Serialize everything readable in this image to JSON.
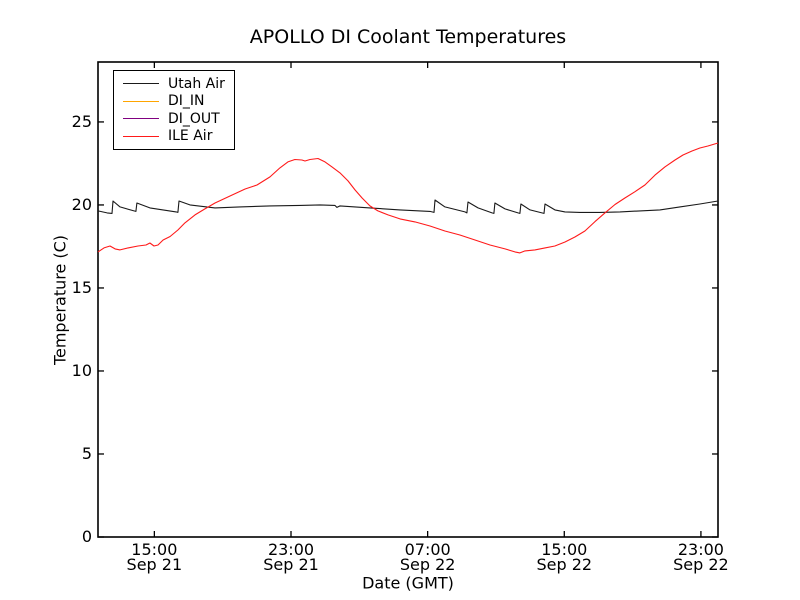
{
  "chart_data": {
    "type": "line",
    "title": "APOLLO DI Coolant Temperatures",
    "xlabel": "Date (GMT)",
    "ylabel": "Temperature (C)",
    "x_unit": "hours since Sep 21 00:00 GMT",
    "xlim": [
      11.7,
      48.0
    ],
    "ylim": [
      0,
      28.61
    ],
    "grid": false,
    "legend_position": "upper left",
    "yticks": [
      {
        "v": 0,
        "label": "0"
      },
      {
        "v": 5,
        "label": "5"
      },
      {
        "v": 10,
        "label": "10"
      },
      {
        "v": 15,
        "label": "15"
      },
      {
        "v": 20,
        "label": "20"
      },
      {
        "v": 25,
        "label": "25"
      }
    ],
    "xticks": [
      {
        "t": 15,
        "time": "15:00",
        "date": "Sep 21"
      },
      {
        "t": 23,
        "time": "23:00",
        "date": "Sep 21"
      },
      {
        "t": 31,
        "time": "07:00",
        "date": "Sep 22"
      },
      {
        "t": 39,
        "time": "15:00",
        "date": "Sep 22"
      },
      {
        "t": 47,
        "time": "23:00",
        "date": "Sep 22"
      }
    ],
    "series": [
      {
        "name": "Utah Air",
        "color": "#1a1a1a",
        "points": [
          [
            11.7,
            19.64
          ],
          [
            12.23,
            19.52
          ],
          [
            12.52,
            19.49
          ],
          [
            12.58,
            20.24
          ],
          [
            12.99,
            19.88
          ],
          [
            13.81,
            19.64
          ],
          [
            13.92,
            19.61
          ],
          [
            13.98,
            20.12
          ],
          [
            14.74,
            19.82
          ],
          [
            16.27,
            19.58
          ],
          [
            16.38,
            19.55
          ],
          [
            16.44,
            20.24
          ],
          [
            17.08,
            20.0
          ],
          [
            18.55,
            19.82
          ],
          [
            20.01,
            19.88
          ],
          [
            21.77,
            19.94
          ],
          [
            23.52,
            19.97
          ],
          [
            24.7,
            20.0
          ],
          [
            25.57,
            19.97
          ],
          [
            25.69,
            19.85
          ],
          [
            25.87,
            19.94
          ],
          [
            27.62,
            19.82
          ],
          [
            29.38,
            19.7
          ],
          [
            31.14,
            19.61
          ],
          [
            31.37,
            19.55
          ],
          [
            31.43,
            20.3
          ],
          [
            32.01,
            19.88
          ],
          [
            33.18,
            19.58
          ],
          [
            33.3,
            19.52
          ],
          [
            33.36,
            20.18
          ],
          [
            33.95,
            19.82
          ],
          [
            34.77,
            19.52
          ],
          [
            34.88,
            19.49
          ],
          [
            34.94,
            20.12
          ],
          [
            35.53,
            19.76
          ],
          [
            36.29,
            19.52
          ],
          [
            36.4,
            19.49
          ],
          [
            36.46,
            20.06
          ],
          [
            36.99,
            19.7
          ],
          [
            37.69,
            19.52
          ],
          [
            37.81,
            19.49
          ],
          [
            37.87,
            20.06
          ],
          [
            38.45,
            19.7
          ],
          [
            39.04,
            19.58
          ],
          [
            39.92,
            19.55
          ],
          [
            41.09,
            19.55
          ],
          [
            42.26,
            19.58
          ],
          [
            43.43,
            19.64
          ],
          [
            44.6,
            19.7
          ],
          [
            45.77,
            19.88
          ],
          [
            46.94,
            20.06
          ],
          [
            48.0,
            20.24
          ]
        ]
      },
      {
        "name": "DI_IN",
        "color": "#ffa500",
        "points": []
      },
      {
        "name": "DI_OUT",
        "color": "#800080",
        "points": []
      },
      {
        "name": "ILE Air",
        "color": "#ff1a1a",
        "points": [
          [
            11.7,
            17.17
          ],
          [
            12.05,
            17.41
          ],
          [
            12.4,
            17.53
          ],
          [
            12.7,
            17.35
          ],
          [
            12.99,
            17.29
          ],
          [
            13.46,
            17.41
          ],
          [
            14.04,
            17.53
          ],
          [
            14.51,
            17.59
          ],
          [
            14.74,
            17.71
          ],
          [
            14.98,
            17.53
          ],
          [
            15.21,
            17.59
          ],
          [
            15.51,
            17.89
          ],
          [
            15.92,
            18.1
          ],
          [
            16.38,
            18.49
          ],
          [
            16.79,
            18.92
          ],
          [
            17.38,
            19.4
          ],
          [
            17.96,
            19.76
          ],
          [
            18.55,
            20.12
          ],
          [
            19.43,
            20.54
          ],
          [
            20.31,
            20.96
          ],
          [
            21.01,
            21.2
          ],
          [
            21.77,
            21.69
          ],
          [
            22.35,
            22.23
          ],
          [
            22.82,
            22.59
          ],
          [
            23.23,
            22.74
          ],
          [
            23.64,
            22.71
          ],
          [
            23.82,
            22.65
          ],
          [
            24.11,
            22.74
          ],
          [
            24.58,
            22.8
          ],
          [
            24.99,
            22.59
          ],
          [
            25.4,
            22.29
          ],
          [
            25.87,
            21.93
          ],
          [
            26.34,
            21.45
          ],
          [
            26.75,
            20.9
          ],
          [
            27.16,
            20.42
          ],
          [
            27.62,
            19.94
          ],
          [
            28.09,
            19.64
          ],
          [
            28.68,
            19.4
          ],
          [
            29.38,
            19.16
          ],
          [
            30.26,
            18.98
          ],
          [
            31.14,
            18.73
          ],
          [
            32.01,
            18.43
          ],
          [
            32.89,
            18.19
          ],
          [
            33.77,
            17.89
          ],
          [
            34.65,
            17.59
          ],
          [
            35.53,
            17.35
          ],
          [
            36.11,
            17.17
          ],
          [
            36.4,
            17.11
          ],
          [
            36.7,
            17.23
          ],
          [
            37.28,
            17.29
          ],
          [
            37.87,
            17.41
          ],
          [
            38.45,
            17.53
          ],
          [
            39.04,
            17.77
          ],
          [
            39.62,
            18.07
          ],
          [
            40.21,
            18.43
          ],
          [
            40.8,
            19.0
          ],
          [
            41.38,
            19.52
          ],
          [
            41.97,
            20.03
          ],
          [
            42.55,
            20.42
          ],
          [
            43.14,
            20.8
          ],
          [
            43.72,
            21.2
          ],
          [
            44.31,
            21.8
          ],
          [
            44.89,
            22.29
          ],
          [
            45.48,
            22.71
          ],
          [
            45.95,
            23.01
          ],
          [
            46.48,
            23.25
          ],
          [
            46.94,
            23.43
          ],
          [
            47.41,
            23.55
          ],
          [
            48.0,
            23.73
          ]
        ]
      }
    ]
  }
}
